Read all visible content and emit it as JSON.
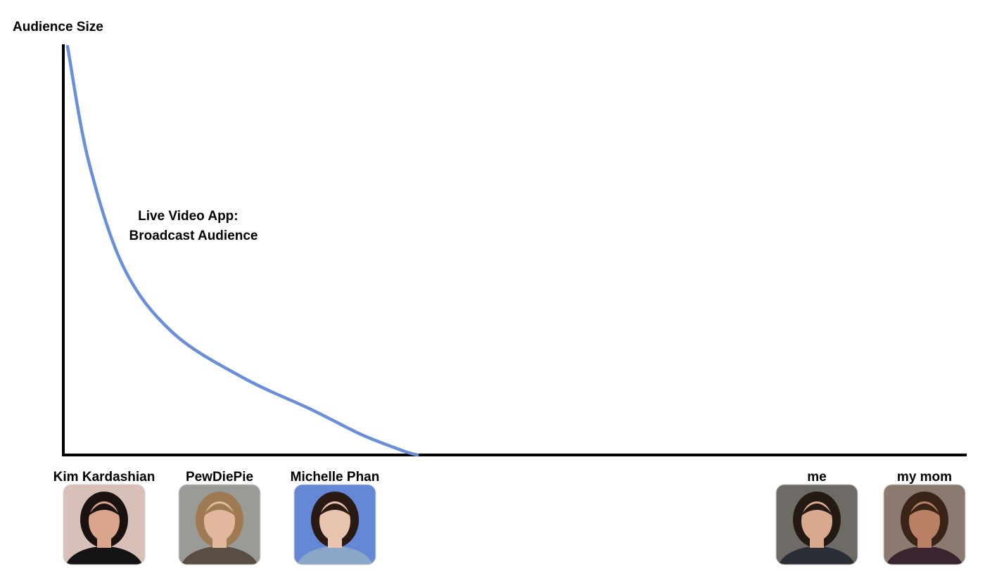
{
  "chart_data": {
    "type": "line",
    "title": "",
    "xlabel": "",
    "ylabel": "Audience Size",
    "annotation": [
      "Live Video App:",
      "Broadcast Audience"
    ],
    "categories": [
      "Kim Kardashian",
      "PewDiePie",
      "Michelle Phan",
      "me",
      "my mom"
    ],
    "series": [
      {
        "name": "",
        "color": "#6a8fd8",
        "points": [
          {
            "x": 0.0,
            "y": 100
          },
          {
            "x": 0.03,
            "y": 72
          },
          {
            "x": 0.08,
            "y": 46
          },
          {
            "x": 0.15,
            "y": 30
          },
          {
            "x": 0.25,
            "y": 19
          },
          {
            "x": 0.35,
            "y": 11
          },
          {
            "x": 0.42,
            "y": 5
          },
          {
            "x": 0.48,
            "y": 1
          },
          {
            "x": 0.5,
            "y": 0
          }
        ]
      }
    ],
    "xlim": [
      0,
      1.26
    ],
    "ylim": [
      0,
      100
    ],
    "grid": false,
    "legend": "none"
  },
  "people": [
    {
      "name": "Kim Kardashian",
      "icon": "kim-kardashian-photo-icon",
      "bg": "#d8bfb8",
      "hair": "#1a1210",
      "skin": "#d9a68b",
      "shirt": "#141414"
    },
    {
      "name": "PewDiePie",
      "icon": "pewdiepie-photo-icon",
      "bg": "#9a9a96",
      "hair": "#a07a52",
      "skin": "#e2b89e",
      "shirt": "#5a4d44"
    },
    {
      "name": "Michelle Phan",
      "icon": "michelle-phan-photo-icon",
      "bg": "#6487d6",
      "hair": "#2a1a14",
      "skin": "#e8c3ad",
      "shirt": "#8aa6c8"
    },
    {
      "name": "me",
      "icon": "me-photo-icon",
      "bg": "#6e6a66",
      "hair": "#241a14",
      "skin": "#d8a98c",
      "shirt": "#2a2e36"
    },
    {
      "name": "my mom",
      "icon": "my-mom-photo-icon",
      "bg": "#8a7a70",
      "hair": "#3a2418",
      "skin": "#b98066",
      "shirt": "#3a2430"
    }
  ]
}
